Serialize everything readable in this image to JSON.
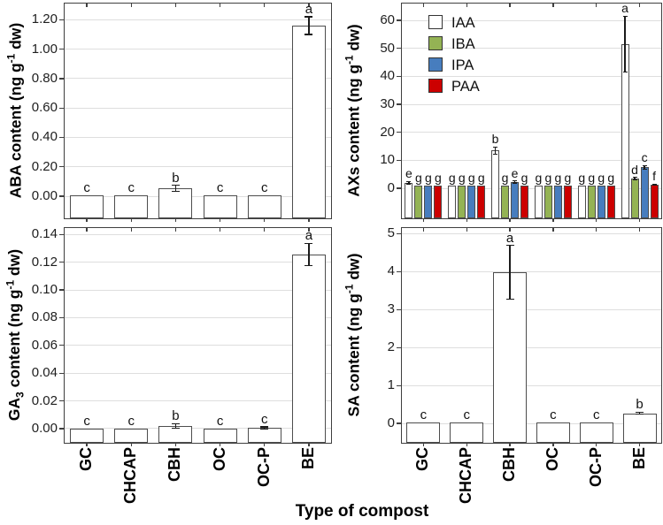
{
  "figure": {
    "xlabel": "Type of compost"
  },
  "categories": [
    "GC",
    "CHCAP",
    "CBH",
    "OC",
    "OC-P",
    "BE"
  ],
  "legend": {
    "entries": [
      {
        "label": "IAA",
        "color": "#FFFFFF"
      },
      {
        "label": "IBA",
        "color": "#94B354"
      },
      {
        "label": "IPA",
        "color": "#477DBE"
      },
      {
        "label": "PAA",
        "color": "#CC0000"
      }
    ]
  },
  "colors": {
    "bar_fill": "#FFFFFF",
    "bar_border": "#4d4d4d",
    "grid": "#dedede",
    "axis": "#3f3f3f",
    "error": "#1b1b1b"
  },
  "chart_data": [
    {
      "id": "aba",
      "type": "bar",
      "ylabel_parts": [
        [
          "n",
          "ABA content (ng g"
        ],
        [
          "sup",
          "-1"
        ],
        [
          "n",
          " dw)"
        ]
      ],
      "ylim": [
        -0.15,
        1.31
      ],
      "grid": true,
      "yticks": [
        {
          "v": 0.0,
          "label": "0.00"
        },
        {
          "v": 0.2,
          "label": "0.20"
        },
        {
          "v": 0.4,
          "label": "0.40"
        },
        {
          "v": 0.6,
          "label": "0.60"
        },
        {
          "v": 0.8,
          "label": "0.80"
        },
        {
          "v": 1.0,
          "label": "1.00"
        },
        {
          "v": 1.2,
          "label": "1.20"
        }
      ],
      "values": [
        0.005,
        0.005,
        0.055,
        0.005,
        0.005,
        1.16
      ],
      "errors": [
        0,
        0,
        0.02,
        0,
        0,
        0.06
      ],
      "letters": [
        "c",
        "c",
        "b",
        "c",
        "c",
        "a"
      ]
    },
    {
      "id": "axs",
      "type": "grouped-bar",
      "ylabel_parts": [
        [
          "n",
          "AXs content (ng g"
        ],
        [
          "sup",
          "-1"
        ],
        [
          "n",
          " dw)"
        ]
      ],
      "ylim": [
        -10.7,
        66
      ],
      "grid": true,
      "legend_position": "upper-left",
      "yticks": [
        {
          "v": 0,
          "label": "0"
        },
        {
          "v": 10,
          "label": "10"
        },
        {
          "v": 20,
          "label": "20"
        },
        {
          "v": 30,
          "label": "30"
        },
        {
          "v": 40,
          "label": "40"
        },
        {
          "v": 50,
          "label": "50"
        },
        {
          "v": 60,
          "label": "60"
        }
      ],
      "series": [
        {
          "name": "IAA",
          "color": "#FFFFFF",
          "values": [
            2.0,
            1.0,
            13.5,
            1.0,
            1.0,
            51.5
          ],
          "errors": [
            0.4,
            0,
            1.3,
            0,
            0,
            10
          ],
          "letters": [
            "e",
            "g",
            "b",
            "g",
            "g",
            "a"
          ]
        },
        {
          "name": "IBA",
          "color": "#94B354",
          "values": [
            1.0,
            1.0,
            1.0,
            1.0,
            1.0,
            3.5
          ],
          "errors": [
            0,
            0,
            0,
            0,
            0,
            0.35
          ],
          "letters": [
            "g",
            "g",
            "g",
            "g",
            "g",
            "d"
          ]
        },
        {
          "name": "IPA",
          "color": "#477DBE",
          "values": [
            1.0,
            1.0,
            2.3,
            1.0,
            1.0,
            7.5
          ],
          "errors": [
            0,
            0,
            0.35,
            0,
            0,
            0.6
          ],
          "letters": [
            "g",
            "g",
            "e",
            "g",
            "g",
            "c"
          ]
        },
        {
          "name": "PAA",
          "color": "#CC0000",
          "values": [
            1.0,
            1.0,
            1.0,
            1.0,
            1.0,
            1.3
          ],
          "errors": [
            0,
            0,
            0,
            0,
            0,
            0.25
          ],
          "letters": [
            "g",
            "g",
            "g",
            "g",
            "g",
            "f"
          ]
        }
      ]
    },
    {
      "id": "ga3",
      "type": "bar",
      "ylabel_parts": [
        [
          "n",
          "GA"
        ],
        [
          "sub",
          "3"
        ],
        [
          "n",
          " content (ng g"
        ],
        [
          "sup",
          "-1"
        ],
        [
          "n",
          " dw)"
        ]
      ],
      "ylim": [
        -0.0102,
        0.1446
      ],
      "grid": true,
      "yticks": [
        {
          "v": 0.0,
          "label": "0.00"
        },
        {
          "v": 0.02,
          "label": "0.02"
        },
        {
          "v": 0.04,
          "label": "0.04"
        },
        {
          "v": 0.06,
          "label": "0.06"
        },
        {
          "v": 0.08,
          "label": "0.08"
        },
        {
          "v": 0.1,
          "label": "0.10"
        },
        {
          "v": 0.12,
          "label": "0.12"
        },
        {
          "v": 0.14,
          "label": "0.14"
        }
      ],
      "values": [
        0.0,
        0.0,
        0.002,
        0.0,
        0.0005,
        0.1257
      ],
      "errors": [
        0,
        0,
        0.0015,
        0,
        0.0008,
        0.008
      ],
      "letters": [
        "c",
        "c",
        "b",
        "c",
        "c",
        "a"
      ]
    },
    {
      "id": "sa",
      "type": "bar",
      "ylabel_parts": [
        [
          "n",
          "SA content (ng g"
        ],
        [
          "sup",
          "-1"
        ],
        [
          "n",
          " dw)"
        ]
      ],
      "ylim": [
        -0.51,
        5.15
      ],
      "grid": true,
      "yticks": [
        {
          "v": 0,
          "label": "0"
        },
        {
          "v": 1,
          "label": "1"
        },
        {
          "v": 2,
          "label": "2"
        },
        {
          "v": 3,
          "label": "3"
        },
        {
          "v": 4,
          "label": "4"
        },
        {
          "v": 5,
          "label": "5"
        }
      ],
      "values": [
        0.03,
        0.03,
        3.98,
        0.02,
        0.02,
        0.27
      ],
      "errors": [
        0,
        0,
        0.71,
        0,
        0,
        0.025
      ],
      "letters": [
        "c",
        "c",
        "a",
        "c",
        "c",
        "b"
      ]
    }
  ]
}
